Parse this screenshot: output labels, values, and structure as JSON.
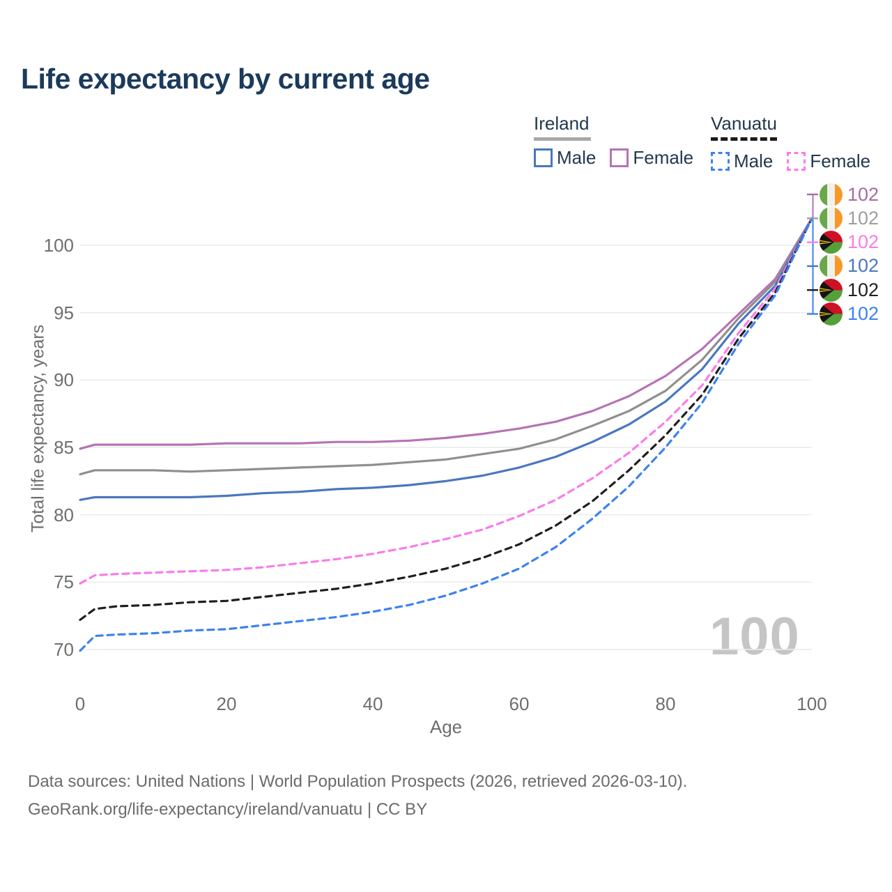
{
  "title": "Life expectancy by current age",
  "legend": {
    "groups": [
      {
        "label": "Ireland",
        "line_style": "solid",
        "underline_color": "#A8A8A8",
        "items": [
          {
            "label": "Male",
            "color": "#4A77BE",
            "dashed": false
          },
          {
            "label": "Female",
            "color": "#B573B5",
            "dashed": false
          }
        ]
      },
      {
        "label": "Vanuatu",
        "line_style": "dashed",
        "underline_color": "#1B1B1B",
        "items": [
          {
            "label": "Male",
            "color": "#3C82F0",
            "dashed": true
          },
          {
            "label": "Female",
            "color": "#FB7BE8",
            "dashed": true
          }
        ]
      }
    ]
  },
  "watermark": "100",
  "chart_data": {
    "type": "line",
    "title": "Life expectancy by current age",
    "xlabel": "Age",
    "ylabel": "Total life expectancy, years",
    "xlim": [
      0,
      100
    ],
    "ylim": [
      68.5,
      103
    ],
    "x_ticks": [
      0,
      20,
      40,
      60,
      80,
      100
    ],
    "y_ticks": [
      70,
      75,
      80,
      85,
      90,
      95,
      100
    ],
    "grid": "horizontal",
    "legend_position": "top-right",
    "x": [
      0,
      2,
      5,
      10,
      15,
      20,
      25,
      30,
      35,
      40,
      45,
      50,
      55,
      60,
      65,
      70,
      75,
      80,
      85,
      90,
      95,
      100
    ],
    "series": [
      {
        "name": "Ireland Female",
        "country": "Ireland",
        "sex": "Female",
        "color": "#B573B5",
        "dashed": false,
        "values": [
          84.9,
          85.2,
          85.2,
          85.2,
          85.2,
          85.3,
          85.3,
          85.3,
          85.4,
          85.4,
          85.5,
          85.7,
          86.0,
          86.4,
          86.9,
          87.7,
          88.8,
          90.3,
          92.3,
          94.9,
          97.5,
          102
        ]
      },
      {
        "name": "Ireland Both sexes",
        "country": "Ireland",
        "sex": "Both",
        "color": "#8F8F8F",
        "dashed": false,
        "values": [
          83.0,
          83.3,
          83.3,
          83.3,
          83.2,
          83.3,
          83.4,
          83.5,
          83.6,
          83.7,
          83.9,
          84.1,
          84.5,
          84.9,
          85.6,
          86.6,
          87.7,
          89.2,
          91.5,
          94.6,
          97.3,
          102
        ]
      },
      {
        "name": "Ireland Male",
        "country": "Ireland",
        "sex": "Male",
        "color": "#4A77BE",
        "dashed": false,
        "values": [
          81.1,
          81.3,
          81.3,
          81.3,
          81.3,
          81.4,
          81.6,
          81.7,
          81.9,
          82.0,
          82.2,
          82.5,
          82.9,
          83.5,
          84.3,
          85.4,
          86.7,
          88.4,
          90.8,
          94.2,
          97.0,
          102
        ]
      },
      {
        "name": "Vanuatu Female",
        "country": "Vanuatu",
        "sex": "Female",
        "color": "#FB7BE8",
        "dashed": true,
        "values": [
          74.9,
          75.5,
          75.6,
          75.7,
          75.8,
          75.9,
          76.1,
          76.4,
          76.7,
          77.1,
          77.6,
          78.2,
          78.9,
          79.9,
          81.1,
          82.7,
          84.6,
          86.9,
          89.6,
          93.5,
          96.8,
          102
        ]
      },
      {
        "name": "Vanuatu Both sexes",
        "country": "Vanuatu",
        "sex": "Both",
        "color": "#1F1F1F",
        "dashed": true,
        "values": [
          72.2,
          73.0,
          73.2,
          73.3,
          73.5,
          73.6,
          73.9,
          74.2,
          74.5,
          74.9,
          75.4,
          76.0,
          76.8,
          77.8,
          79.2,
          81.0,
          83.3,
          85.9,
          88.9,
          93.1,
          96.5,
          102
        ]
      },
      {
        "name": "Vanuatu Male",
        "country": "Vanuatu",
        "sex": "Male",
        "color": "#3C82F0",
        "dashed": true,
        "values": [
          69.9,
          71.0,
          71.1,
          71.2,
          71.4,
          71.5,
          71.8,
          72.1,
          72.4,
          72.8,
          73.3,
          74.0,
          74.9,
          76.0,
          77.6,
          79.7,
          82.1,
          85.0,
          88.3,
          92.7,
          96.3,
          102
        ]
      }
    ],
    "end_labels": [
      {
        "value": "102",
        "flag": "ireland",
        "color": "#A66BA6",
        "series": "Ireland Female"
      },
      {
        "value": "102",
        "flag": "ireland",
        "color": "#9E9E9E",
        "series": "Ireland Both sexes"
      },
      {
        "value": "102",
        "flag": "vanuatu",
        "color": "#FB7BE8",
        "series": "Vanuatu Female"
      },
      {
        "value": "102",
        "flag": "ireland",
        "color": "#4A78BE",
        "series": "Ireland Male"
      },
      {
        "value": "102",
        "flag": "vanuatu",
        "color": "#1F1F1F",
        "series": "Vanuatu Both sexes"
      },
      {
        "value": "102",
        "flag": "vanuatu",
        "color": "#3C82F0",
        "series": "Vanuatu Male"
      }
    ]
  },
  "footer": {
    "line1": "Data sources: United Nations | World Population Prospects (2026, retrieved 2026-03-10).",
    "line2": "GeoRank.org/life-expectancy/ireland/vanuatu | CC BY"
  }
}
